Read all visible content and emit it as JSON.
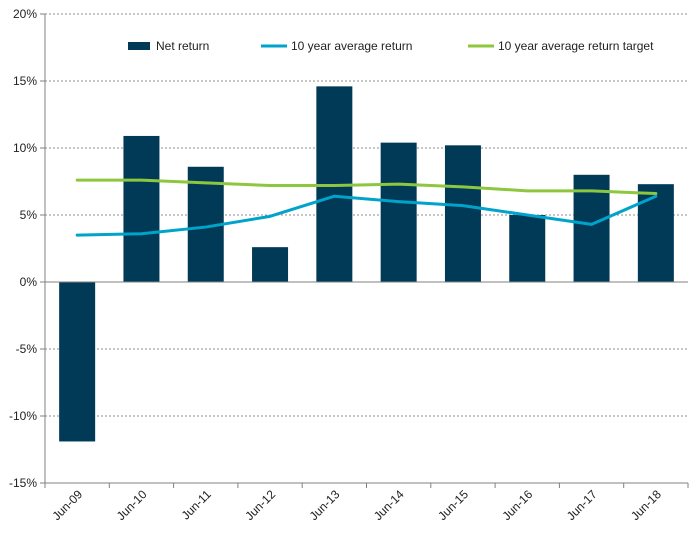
{
  "chart_data": {
    "type": "bar",
    "categories": [
      "Jun-09",
      "Jun-10",
      "Jun-11",
      "Jun-12",
      "Jun-13",
      "Jun-14",
      "Jun-15",
      "Jun-16",
      "Jun-17",
      "Jun-18"
    ],
    "series": [
      {
        "name": "Net return",
        "kind": "bar",
        "color": "#003a57",
        "values": [
          -11.9,
          10.9,
          8.6,
          2.6,
          14.6,
          10.4,
          10.2,
          5.0,
          8.0,
          7.3
        ]
      },
      {
        "name": "10 year average return",
        "kind": "line",
        "color": "#00a3c9",
        "values": [
          3.5,
          3.6,
          4.1,
          4.9,
          6.4,
          6.0,
          5.7,
          5.0,
          4.3,
          6.4
        ]
      },
      {
        "name": "10 year average return target",
        "kind": "line",
        "color": "#8dc63f",
        "values": [
          7.6,
          7.6,
          7.4,
          7.2,
          7.2,
          7.3,
          7.1,
          6.8,
          6.8,
          6.6
        ]
      }
    ],
    "ylim": [
      -15,
      20
    ],
    "yticks": [
      -15,
      -10,
      -5,
      0,
      5,
      10,
      15,
      20
    ],
    "ytick_labels": [
      "-15%",
      "-10%",
      "-5%",
      "0%",
      "5%",
      "10%",
      "15%",
      "20%"
    ],
    "grid": true,
    "legend_position": "top",
    "title": "",
    "xlabel": "",
    "ylabel": ""
  }
}
